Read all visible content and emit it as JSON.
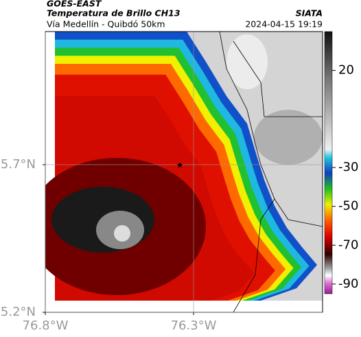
{
  "header": {
    "title": "GOES-EAST",
    "subtitle": "Temperatura de Brillo CH13",
    "source": "SIATA",
    "location": "Vía Medellín - Quibdó 50km",
    "timestamp": "2024-04-15 19:19"
  },
  "map": {
    "xlim": [
      -76.8,
      -75.865
    ],
    "ylim": [
      5.2,
      6.151
    ],
    "xticks": [
      {
        "value": -76.8,
        "label": "76.8°W"
      },
      {
        "value": -76.3,
        "label": "76.3°W"
      }
    ],
    "yticks": [
      {
        "value": 5.7,
        "label": "5.7°N"
      },
      {
        "value": 5.2,
        "label": "5.2°N"
      }
    ],
    "grid": true
  },
  "colorbar": {
    "lim": [
      -95,
      40
    ],
    "ticks": [
      20,
      -30,
      -50,
      -70,
      -90
    ]
  }
}
